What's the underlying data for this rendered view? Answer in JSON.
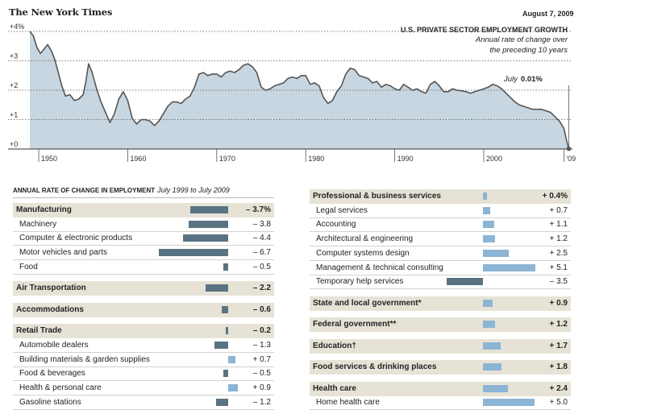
{
  "masthead": "The New York Times",
  "date": "August 7, 2009",
  "chart_data": {
    "type": "area",
    "title": "U.S. PRIVATE SECTOR EMPLOYMENT GROWTH",
    "subtitle": "Annual rate of change over\nthe preceding 10 years",
    "y_ticks": [
      "+4%",
      "+3",
      "+2",
      "+1",
      "+0"
    ],
    "ylim": [
      0,
      4
    ],
    "x_ticks": [
      "1950",
      "1960",
      "1970",
      "1980",
      "1990",
      "2000",
      "'09"
    ],
    "xlim": [
      1949,
      2009.6
    ],
    "annotation": {
      "label": "July",
      "value": "0.01%"
    },
    "x": [
      1949.0,
      1949.4,
      1949.8,
      1950.2,
      1950.6,
      1951.0,
      1951.4,
      1951.8,
      1952.2,
      1952.6,
      1953.0,
      1953.5,
      1954.0,
      1954.5,
      1955.0,
      1955.3,
      1955.6,
      1956.0,
      1956.5,
      1957.0,
      1957.5,
      1958.0,
      1958.5,
      1959.0,
      1959.5,
      1960.0,
      1960.5,
      1961.0,
      1961.5,
      1962.0,
      1962.5,
      1963.0,
      1963.5,
      1964.0,
      1964.5,
      1965.0,
      1965.5,
      1966.0,
      1966.5,
      1967.0,
      1967.5,
      1968.0,
      1968.5,
      1969.0,
      1969.5,
      1970.0,
      1970.5,
      1971.0,
      1971.5,
      1972.0,
      1972.5,
      1973.0,
      1973.5,
      1974.0,
      1974.5,
      1975.0,
      1975.5,
      1976.0,
      1976.5,
      1977.0,
      1977.5,
      1978.0,
      1978.5,
      1979.0,
      1979.5,
      1980.0,
      1980.5,
      1981.0,
      1981.5,
      1982.0,
      1982.5,
      1983.0,
      1983.5,
      1984.0,
      1984.5,
      1985.0,
      1985.5,
      1986.0,
      1986.5,
      1987.0,
      1987.5,
      1988.0,
      1988.5,
      1989.0,
      1989.5,
      1990.0,
      1990.5,
      1991.0,
      1991.5,
      1992.0,
      1992.5,
      1993.0,
      1993.5,
      1994.0,
      1994.5,
      1995.0,
      1995.5,
      1996.0,
      1996.5,
      1997.0,
      1997.5,
      1998.0,
      1998.5,
      1999.0,
      1999.5,
      2000.0,
      2000.5,
      2001.0,
      2001.5,
      2002.0,
      2002.5,
      2003.0,
      2003.5,
      2004.0,
      2004.5,
      2005.0,
      2005.5,
      2006.0,
      2006.5,
      2007.0,
      2007.5,
      2008.0,
      2008.5,
      2009.0,
      2009.3,
      2009.55
    ],
    "y": [
      4.0,
      3.85,
      3.45,
      3.25,
      3.4,
      3.55,
      3.35,
      3.05,
      2.6,
      2.15,
      1.8,
      1.85,
      1.65,
      1.7,
      1.85,
      2.3,
      2.9,
      2.6,
      2.05,
      1.6,
      1.25,
      0.9,
      1.2,
      1.7,
      1.95,
      1.65,
      1.05,
      0.85,
      1.0,
      1.0,
      0.95,
      0.8,
      0.95,
      1.2,
      1.45,
      1.6,
      1.6,
      1.55,
      1.7,
      1.8,
      2.1,
      2.55,
      2.6,
      2.5,
      2.55,
      2.55,
      2.45,
      2.6,
      2.65,
      2.6,
      2.7,
      2.85,
      2.9,
      2.8,
      2.6,
      2.1,
      2.0,
      2.05,
      2.15,
      2.2,
      2.25,
      2.4,
      2.45,
      2.4,
      2.5,
      2.5,
      2.2,
      2.25,
      2.15,
      1.75,
      1.55,
      1.65,
      1.95,
      2.15,
      2.55,
      2.75,
      2.7,
      2.5,
      2.45,
      2.4,
      2.25,
      2.3,
      2.1,
      2.2,
      2.15,
      2.05,
      2.0,
      2.2,
      2.1,
      2.0,
      2.05,
      1.95,
      1.9,
      2.2,
      2.3,
      2.15,
      1.95,
      1.95,
      2.05,
      2.0,
      1.98,
      1.95,
      1.9,
      1.95,
      2.0,
      2.05,
      2.1,
      2.2,
      2.15,
      2.05,
      1.9,
      1.75,
      1.6,
      1.5,
      1.45,
      1.4,
      1.35,
      1.35,
      1.35,
      1.3,
      1.25,
      1.1,
      0.95,
      0.7,
      0.3,
      0.01
    ]
  },
  "table": {
    "title": "ANNUAL RATE OF CHANGE IN EMPLOYMENT",
    "period": "July 1999 to July 2009",
    "left": [
      {
        "label": "Manufacturing",
        "value": "– 3.7%",
        "v": -3.7,
        "kind": "header"
      },
      {
        "label": "Machinery",
        "value": "– 3.8",
        "v": -3.8,
        "kind": "sub"
      },
      {
        "label": "Computer & electronic products",
        "value": "– 4.4",
        "v": -4.4,
        "kind": "sub"
      },
      {
        "label": "Motor vehicles and parts",
        "value": "– 6.7",
        "v": -6.7,
        "kind": "sub"
      },
      {
        "label": "Food",
        "value": "– 0.5",
        "v": -0.5,
        "kind": "sub"
      },
      {
        "label": "Air Transportation",
        "value": "– 2.2",
        "v": -2.2,
        "kind": "header"
      },
      {
        "label": "Accommodations",
        "value": "– 0.6",
        "v": -0.6,
        "kind": "header"
      },
      {
        "label": "Retail Trade",
        "value": "– 0.2",
        "v": -0.2,
        "kind": "header"
      },
      {
        "label": "Automobile dealers",
        "value": "– 1.3",
        "v": -1.3,
        "kind": "sub"
      },
      {
        "label": "Building materials & garden supplies",
        "value": "+ 0.7",
        "v": 0.7,
        "kind": "sub"
      },
      {
        "label": "Food & beverages",
        "value": "– 0.5",
        "v": -0.5,
        "kind": "sub"
      },
      {
        "label": "Health & personal care",
        "value": "+ 0.9",
        "v": 0.9,
        "kind": "sub"
      },
      {
        "label": "Gasoline stations",
        "value": "– 1.2",
        "v": -1.2,
        "kind": "sub"
      }
    ],
    "right": [
      {
        "label": "Professional & business services",
        "value": "+ 0.4%",
        "v": 0.4,
        "kind": "header"
      },
      {
        "label": "Legal services",
        "value": "+ 0.7",
        "v": 0.7,
        "kind": "sub"
      },
      {
        "label": "Accounting",
        "value": "+ 1.1",
        "v": 1.1,
        "kind": "sub"
      },
      {
        "label": "Architectural & engineering",
        "value": "+ 1.2",
        "v": 1.2,
        "kind": "sub"
      },
      {
        "label": "Computer systems design",
        "value": "+ 2.5",
        "v": 2.5,
        "kind": "sub"
      },
      {
        "label": "Management & technical consulting",
        "value": "+ 5.1",
        "v": 5.1,
        "kind": "sub"
      },
      {
        "label": "Temporary help services",
        "value": "– 3.5",
        "v": -3.5,
        "kind": "sub"
      },
      {
        "label": "State and local government*",
        "value": "+ 0.9",
        "v": 0.9,
        "kind": "header"
      },
      {
        "label": "Federal government**",
        "value": "+ 1.2",
        "v": 1.2,
        "kind": "header"
      },
      {
        "label": "Education†",
        "value": "+ 1.7",
        "v": 1.7,
        "kind": "header"
      },
      {
        "label": "Food services & drinking places",
        "value": "+ 1.8",
        "v": 1.8,
        "kind": "header"
      },
      {
        "label": "Health care",
        "value": "+ 2.4",
        "v": 2.4,
        "kind": "header"
      },
      {
        "label": "Home health care",
        "value": "+ 5.0",
        "v": 5.0,
        "kind": "sub"
      }
    ]
  }
}
